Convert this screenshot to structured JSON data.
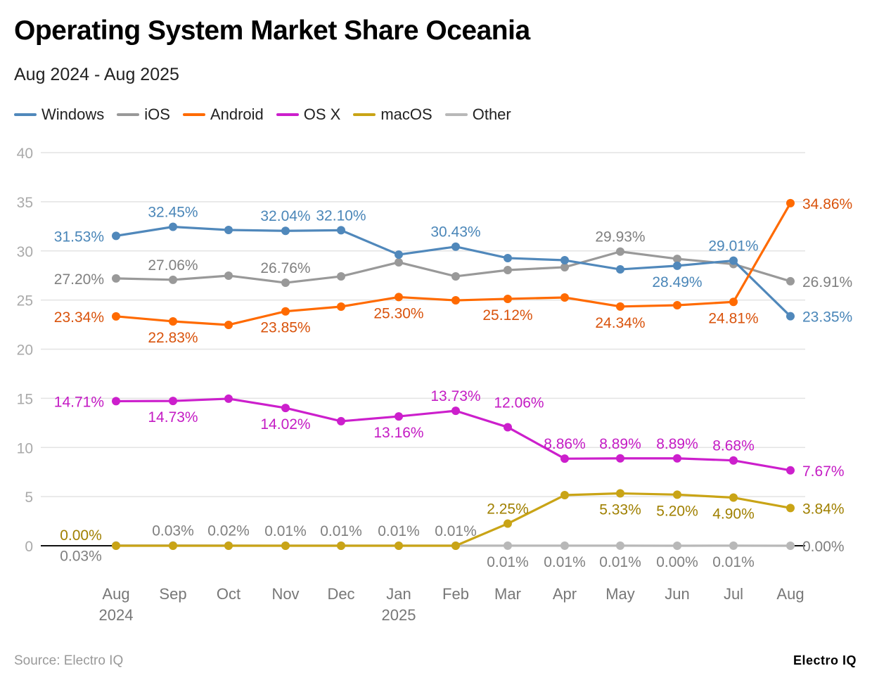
{
  "title": "Operating System Market Share Oceania",
  "subtitle": "Aug 2024 - Aug 2025",
  "source": "Source: Electro IQ",
  "brand": "Electro IQ",
  "chart_data": {
    "type": "line",
    "categories": [
      "Aug\n2024",
      "Sep",
      "Oct",
      "Nov",
      "Dec",
      "Jan\n2025",
      "Feb",
      "Mar",
      "Apr",
      "May",
      "Jun",
      "Jul",
      "Aug"
    ],
    "ylim": [
      0,
      40
    ],
    "yticks": [
      "0",
      "5",
      "10",
      "15",
      "20",
      "25",
      "30",
      "35",
      "40"
    ],
    "grid": true,
    "legend_position": "top-left",
    "series": [
      {
        "name": "Windows",
        "color": "#5088bb",
        "label_color": "#4a86b8",
        "values": [
          31.53,
          32.45,
          32.13,
          32.04,
          32.1,
          29.62,
          30.43,
          29.27,
          29.05,
          28.12,
          28.49,
          29.01,
          23.35
        ],
        "labels": [
          "31.53%",
          "32.45%",
          null,
          "32.04%",
          "32.10%",
          null,
          "30.43%",
          null,
          null,
          null,
          "28.49%",
          "29.01%",
          "23.35%"
        ]
      },
      {
        "name": "iOS",
        "color": "#999999",
        "label_color": "#808080",
        "values": [
          27.2,
          27.06,
          27.48,
          26.76,
          27.41,
          28.84,
          27.41,
          28.05,
          28.34,
          29.93,
          29.19,
          28.66,
          26.91
        ],
        "labels": [
          "27.20%",
          "27.06%",
          null,
          "26.76%",
          null,
          null,
          null,
          null,
          null,
          "29.93%",
          null,
          null,
          "26.91%"
        ]
      },
      {
        "name": "Android",
        "color": "#ff6a00",
        "label_color": "#d9530c",
        "values": [
          23.34,
          22.83,
          22.47,
          23.85,
          24.33,
          25.3,
          24.97,
          25.12,
          25.26,
          24.34,
          24.47,
          24.81,
          34.86
        ],
        "labels": [
          "23.34%",
          "22.83%",
          null,
          "23.85%",
          null,
          "25.30%",
          null,
          "25.12%",
          null,
          "24.34%",
          null,
          "24.81%",
          "34.86%"
        ]
      },
      {
        "name": "OS X",
        "color": "#cc1fcc",
        "label_color": "#c41bc4",
        "values": [
          14.71,
          14.73,
          14.96,
          14.02,
          12.67,
          13.16,
          13.73,
          12.06,
          8.86,
          8.89,
          8.89,
          8.68,
          7.67
        ],
        "labels": [
          "14.71%",
          "14.73%",
          null,
          "14.02%",
          null,
          "13.16%",
          "13.73%",
          "12.06%",
          "8.86%",
          "8.89%",
          "8.89%",
          "8.68%",
          "7.67%"
        ]
      },
      {
        "name": "macOS",
        "color": "#c9a416",
        "label_color": "#a08000",
        "values": [
          0.0,
          0.0,
          0.0,
          0.0,
          0.0,
          0.0,
          0.0,
          2.25,
          5.15,
          5.33,
          5.2,
          4.9,
          3.84
        ],
        "labels": [
          "0.00%",
          null,
          null,
          null,
          null,
          null,
          null,
          "2.25%",
          null,
          "5.33%",
          "5.20%",
          "4.90%",
          "3.84%"
        ]
      },
      {
        "name": "Other",
        "color": "#b8b8b8",
        "label_color": "#7f7f7f",
        "values": [
          0.03,
          0.03,
          0.02,
          0.01,
          0.01,
          0.01,
          0.01,
          0.01,
          0.01,
          0.01,
          0.0,
          0.01,
          0.0
        ],
        "labels": [
          "0.03%",
          "0.03%",
          "0.02%",
          "0.01%",
          "0.01%",
          "0.01%",
          "0.01%",
          "0.01%",
          "0.01%",
          "0.01%",
          "0.00%",
          "0.01%",
          "0.00%"
        ]
      }
    ]
  }
}
